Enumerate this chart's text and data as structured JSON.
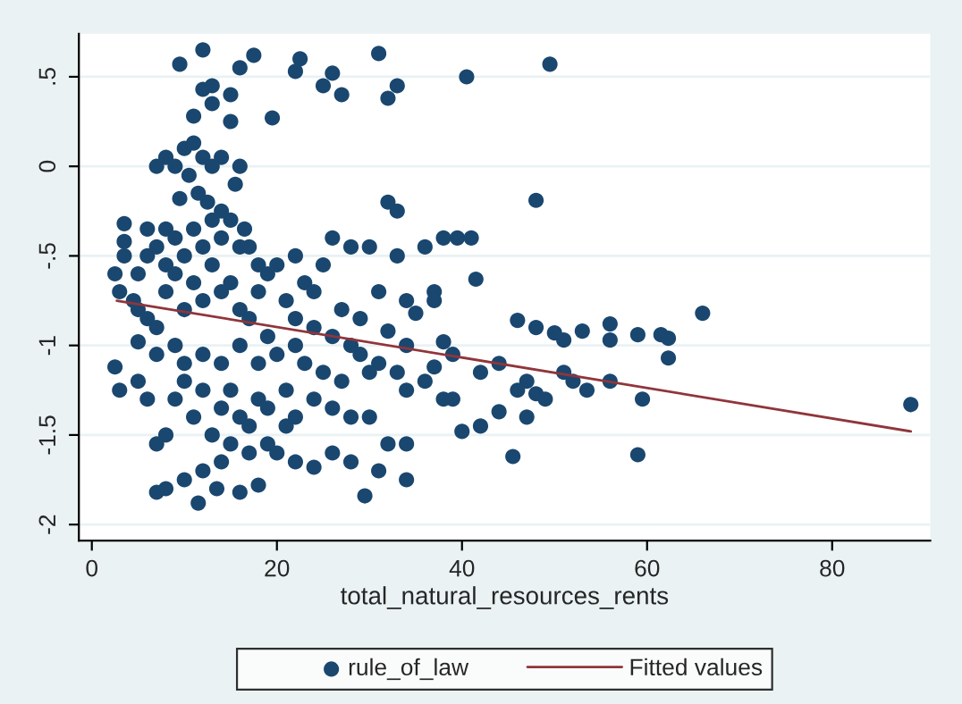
{
  "chart_data": {
    "type": "scatter",
    "xlabel": "total_natural_resources_rents",
    "xlim": [
      -1.4,
      90.6
    ],
    "xticks": [
      0,
      20,
      40,
      60,
      80
    ],
    "ylim": [
      -2.09,
      0.74
    ],
    "yticks": [
      {
        "value": -2,
        "label": "-2"
      },
      {
        "value": -1.5,
        "label": "-1.5"
      },
      {
        "value": -1,
        "label": "-1"
      },
      {
        "value": -0.5,
        "label": "-.5"
      },
      {
        "value": 0,
        "label": "0"
      },
      {
        "value": 0.5,
        "label": ".5"
      }
    ],
    "grid": "y",
    "legend": "bottom",
    "series": [
      {
        "name": "rule_of_law",
        "marker": "circle",
        "color": "#1a476f",
        "x": [
          12,
          9.5,
          17.5,
          22.5,
          22,
          16,
          13,
          15,
          12,
          13,
          15,
          11,
          19.5,
          26,
          25,
          27,
          31,
          33,
          32,
          40.5,
          49.5,
          10,
          11,
          8,
          7,
          9,
          12,
          14,
          16,
          10.5,
          15.5,
          13,
          11.5,
          9.5,
          12.5,
          14,
          16.5,
          15,
          17,
          48,
          32,
          33,
          3.5,
          3.5,
          3.5,
          2.5,
          3,
          5,
          6,
          6,
          7,
          8,
          8,
          8,
          9,
          9,
          10,
          10,
          11,
          11,
          12,
          12,
          13,
          13,
          14,
          14,
          15,
          16,
          16,
          18,
          18,
          19,
          20,
          21,
          5,
          6,
          7,
          4.5,
          17,
          19,
          22,
          25,
          26,
          28,
          30,
          23,
          24,
          27,
          29,
          31,
          34,
          35,
          36,
          38,
          39.5,
          41,
          41.5,
          37,
          37,
          33,
          32,
          34,
          38,
          39,
          46,
          48,
          51,
          50,
          53,
          56,
          56,
          59,
          61.5,
          62.3,
          62.3,
          66,
          56,
          59.5,
          59,
          88.5,
          53.5,
          52,
          51,
          47,
          48,
          49,
          47,
          44,
          45.5,
          42,
          40,
          38,
          39,
          37,
          36,
          34,
          33,
          31,
          30,
          29,
          27,
          25,
          24,
          26,
          28,
          30,
          32,
          34,
          34,
          31,
          29.5,
          26,
          28,
          24,
          22,
          20,
          21,
          22,
          18,
          17,
          16,
          15,
          14,
          13,
          12,
          11,
          10,
          9,
          8,
          7,
          6,
          5,
          3,
          2.5,
          5,
          7,
          9,
          10,
          12,
          14,
          16,
          18,
          20,
          22,
          8,
          10,
          12,
          11.5,
          13.5,
          16,
          18,
          7,
          17,
          19,
          14,
          15,
          19,
          21,
          23,
          26,
          28,
          24,
          22,
          44,
          42,
          46
        ],
        "values": [
          0.65,
          0.57,
          0.62,
          0.6,
          0.53,
          0.55,
          0.45,
          0.4,
          0.43,
          0.35,
          0.25,
          0.28,
          0.27,
          0.52,
          0.45,
          0.4,
          0.63,
          0.45,
          0.38,
          0.5,
          0.57,
          0.1,
          0.13,
          0.05,
          0,
          0,
          0.05,
          0.05,
          0,
          -0.05,
          -0.1,
          0,
          -0.15,
          -0.18,
          -0.2,
          -0.25,
          -0.35,
          -0.3,
          -0.45,
          -0.19,
          -0.2,
          -0.25,
          -0.32,
          -0.42,
          -0.5,
          -0.6,
          -0.7,
          -0.6,
          -0.35,
          -0.5,
          -0.45,
          -0.35,
          -0.55,
          -0.7,
          -0.4,
          -0.6,
          -0.5,
          -0.8,
          -0.35,
          -0.65,
          -0.45,
          -0.75,
          -0.55,
          -0.3,
          -0.4,
          -0.7,
          -0.65,
          -0.45,
          -0.8,
          -0.55,
          -0.7,
          -0.6,
          -0.55,
          -0.75,
          -0.8,
          -0.85,
          -0.9,
          -0.75,
          -0.85,
          -0.95,
          -0.5,
          -0.55,
          -0.4,
          -0.45,
          -0.45,
          -0.65,
          -0.7,
          -0.8,
          -0.85,
          -0.7,
          -0.75,
          -0.82,
          -0.45,
          -0.4,
          -0.4,
          -0.4,
          -0.63,
          -0.7,
          -0.75,
          -0.5,
          -0.92,
          -1.0,
          -0.98,
          -1.05,
          -0.86,
          -0.9,
          -0.97,
          -0.93,
          -0.92,
          -0.88,
          -0.97,
          -0.94,
          -0.94,
          -0.96,
          -1.07,
          -0.82,
          -1.2,
          -1.3,
          -1.61,
          -1.33,
          -1.25,
          -1.2,
          -1.15,
          -1.2,
          -1.27,
          -1.3,
          -1.4,
          -1.37,
          -1.62,
          -1.45,
          -1.48,
          -1.3,
          -1.3,
          -1.12,
          -1.2,
          -1.25,
          -1.15,
          -1.1,
          -1.15,
          -1.05,
          -1.2,
          -1.15,
          -1.3,
          -1.35,
          -1.4,
          -1.4,
          -1.55,
          -1.55,
          -1.75,
          -1.7,
          -1.84,
          -1.6,
          -1.65,
          -1.68,
          -1.65,
          -1.6,
          -1.45,
          -1.4,
          -1.3,
          -1.45,
          -1.4,
          -1.55,
          -1.35,
          -1.5,
          -1.25,
          -1.4,
          -1.2,
          -1.3,
          -1.5,
          -1.55,
          -1.3,
          -1.2,
          -1.25,
          -1.12,
          -0.98,
          -1.05,
          -1.0,
          -1.1,
          -1.05,
          -1.1,
          -1.0,
          -1.1,
          -1.05,
          -1.0,
          -1.8,
          -1.75,
          -1.7,
          -1.88,
          -1.8,
          -1.82,
          -1.78,
          -1.82,
          -1.6,
          -1.55,
          -1.65,
          -1.25,
          -1.35,
          -1.25,
          -1.1,
          -0.95,
          -1.0,
          -0.9,
          -0.85,
          -1.1,
          -1.15,
          -1.25
        ]
      },
      {
        "name": "Fitted values",
        "type": "line",
        "marker": "none",
        "color": "#90353b",
        "x": [
          2.7,
          88.5
        ],
        "values": [
          -0.75,
          -1.48
        ]
      }
    ]
  }
}
